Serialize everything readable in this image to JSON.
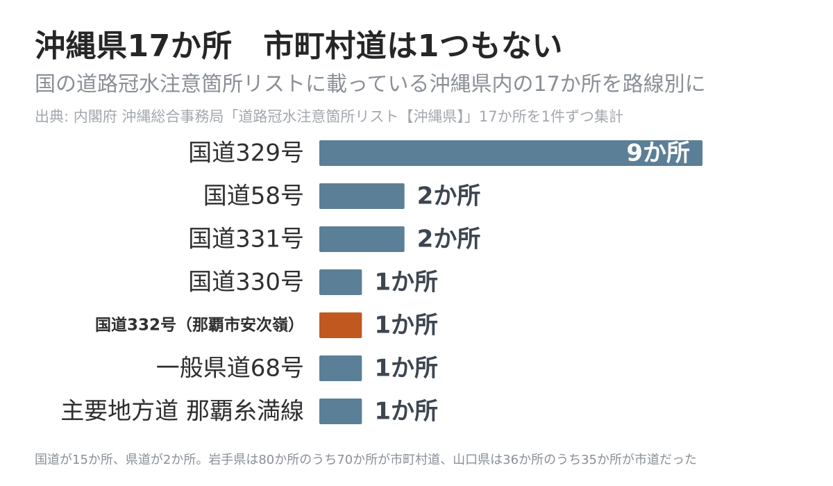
{
  "title": "沖縄県17か所　市町村道は1つもない",
  "subtitle": "国の道路冠水注意箇所リストに載っている沖縄県内の17か所を路線別に",
  "source": "出典: 内閣府 沖縄総合事務局「道路冠水注意箇所リスト【沖縄県】」17か所を1件ずつ集計",
  "footnote": "国道が15か所、県道が2か所。岩手県は80か所のうち70か所が市町村道、山口県は36か所のうち35か所が市道だった",
  "colors": {
    "bar": "#5b7f96",
    "highlight": "#c0581f",
    "value_text": "#3d4650",
    "value_text_inside": "#ffffff"
  },
  "chart_data": {
    "type": "bar",
    "orientation": "horizontal",
    "categories": [
      "国道329号",
      "国道58号",
      "国道331号",
      "国道330号",
      "国道332号（那覇市安次嶺）",
      "一般県道68号",
      "主要地方道 那覇糸満線"
    ],
    "values": [
      9,
      2,
      2,
      1,
      1,
      1,
      1
    ],
    "value_labels": [
      "9か所",
      "2か所",
      "2か所",
      "1か所",
      "1か所",
      "1か所",
      "1か所"
    ],
    "highlight_index": 4,
    "xlim": [
      0,
      9
    ],
    "grid": false,
    "legend": "none"
  }
}
